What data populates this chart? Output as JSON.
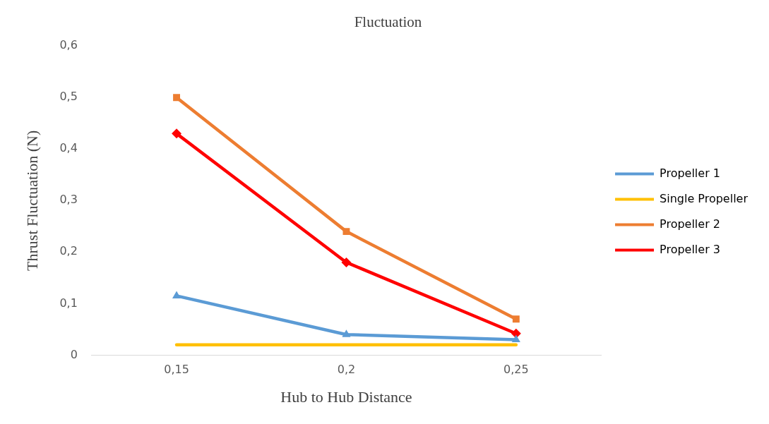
{
  "chart_data": {
    "type": "line",
    "title": "Fluctuation",
    "xlabel": "Hub to Hub Distance",
    "ylabel": "Thrust Fluctuation (N)",
    "categories": [
      "0,15",
      "0,2",
      "0,25"
    ],
    "series": [
      {
        "name": "Propeller 1",
        "color": "#5b9bd5",
        "marker": "triangle",
        "values": [
          0.115,
          0.04,
          0.03
        ]
      },
      {
        "name": "Single Propeller",
        "color": "#ffc000",
        "marker": "none",
        "values": [
          0.02,
          0.02,
          0.02
        ]
      },
      {
        "name": "Propeller 2",
        "color": "#ed7d31",
        "marker": "square",
        "values": [
          0.5,
          0.24,
          0.07
        ]
      },
      {
        "name": "Propeller 3",
        "color": "#ff0000",
        "marker": "diamond",
        "values": [
          0.43,
          0.18,
          0.042
        ]
      }
    ],
    "ylim": [
      0,
      0.6
    ],
    "yticks": [
      {
        "value": 0,
        "label": "0"
      },
      {
        "value": 0.1,
        "label": "0,1"
      },
      {
        "value": 0.2,
        "label": "0,2"
      },
      {
        "value": 0.3,
        "label": "0,3"
      },
      {
        "value": 0.4,
        "label": "0,4"
      },
      {
        "value": 0.5,
        "label": "0,5"
      },
      {
        "value": 0.6,
        "label": "0,6"
      }
    ],
    "grid": false,
    "legend": "right",
    "line_style": "solid"
  }
}
